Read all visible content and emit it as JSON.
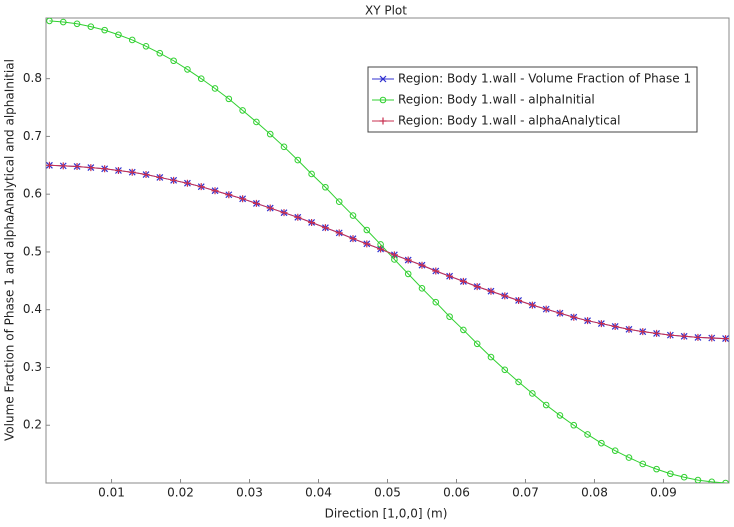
{
  "chart_data": {
    "type": "line",
    "title": "XY Plot",
    "xlabel": "Direction [1,0,0] (m)",
    "ylabel": "Volume Fraction of Phase 1 and alphaAnalytical and alphaInitial",
    "x": [
      0.001,
      0.003,
      0.005,
      0.007,
      0.009,
      0.011,
      0.013,
      0.015,
      0.017,
      0.019,
      0.021,
      0.023,
      0.025,
      0.027,
      0.029,
      0.031,
      0.033,
      0.035,
      0.037,
      0.039,
      0.041,
      0.043,
      0.045,
      0.047,
      0.049,
      0.051,
      0.053,
      0.055,
      0.057,
      0.059,
      0.061,
      0.063,
      0.065,
      0.067,
      0.069,
      0.071,
      0.073,
      0.075,
      0.077,
      0.079,
      0.081,
      0.083,
      0.085,
      0.087,
      0.089,
      0.091,
      0.093,
      0.095,
      0.097,
      0.099
    ],
    "series": [
      {
        "name": "Region: Body 1.wall - Volume Fraction of Phase 1",
        "color": "#3030d0",
        "marker": "x",
        "values": [
          0.65,
          0.649,
          0.648,
          0.646,
          0.644,
          0.641,
          0.638,
          0.634,
          0.629,
          0.624,
          0.619,
          0.613,
          0.606,
          0.599,
          0.592,
          0.584,
          0.576,
          0.568,
          0.56,
          0.551,
          0.542,
          0.533,
          0.523,
          0.514,
          0.505,
          0.495,
          0.486,
          0.477,
          0.467,
          0.458,
          0.449,
          0.44,
          0.432,
          0.424,
          0.416,
          0.408,
          0.401,
          0.394,
          0.387,
          0.381,
          0.376,
          0.371,
          0.366,
          0.362,
          0.359,
          0.356,
          0.354,
          0.352,
          0.351,
          0.35
        ]
      },
      {
        "name": "Region: Body 1.wall - alphaInitial",
        "color": "#30d030",
        "marker": "o",
        "values": [
          0.9,
          0.898,
          0.895,
          0.89,
          0.884,
          0.876,
          0.867,
          0.856,
          0.844,
          0.831,
          0.816,
          0.8,
          0.783,
          0.765,
          0.745,
          0.725,
          0.704,
          0.682,
          0.659,
          0.635,
          0.612,
          0.587,
          0.563,
          0.538,
          0.513,
          0.487,
          0.462,
          0.437,
          0.413,
          0.388,
          0.365,
          0.341,
          0.318,
          0.296,
          0.275,
          0.255,
          0.235,
          0.217,
          0.2,
          0.184,
          0.169,
          0.156,
          0.144,
          0.133,
          0.124,
          0.116,
          0.11,
          0.105,
          0.102,
          0.1
        ]
      },
      {
        "name": "Region: Body 1.wall - alphaAnalytical",
        "color": "#c83050",
        "marker": "+",
        "values": [
          0.65,
          0.649,
          0.648,
          0.646,
          0.644,
          0.641,
          0.638,
          0.634,
          0.629,
          0.624,
          0.619,
          0.613,
          0.606,
          0.599,
          0.592,
          0.584,
          0.576,
          0.568,
          0.56,
          0.551,
          0.542,
          0.533,
          0.523,
          0.514,
          0.505,
          0.495,
          0.486,
          0.477,
          0.467,
          0.458,
          0.449,
          0.44,
          0.432,
          0.424,
          0.416,
          0.408,
          0.401,
          0.394,
          0.387,
          0.381,
          0.376,
          0.371,
          0.366,
          0.362,
          0.359,
          0.356,
          0.354,
          0.352,
          0.351,
          0.35
        ]
      }
    ],
    "xlim": [
      0.0005,
      0.0995
    ],
    "ylim": [
      0.1,
      0.905
    ],
    "xticks": [
      0.01,
      0.02,
      0.03,
      0.04,
      0.05,
      0.06,
      0.07,
      0.08,
      0.09
    ],
    "yticks": [
      0.2,
      0.3,
      0.4,
      0.5,
      0.6,
      0.7,
      0.8
    ],
    "legend": "upper right"
  }
}
